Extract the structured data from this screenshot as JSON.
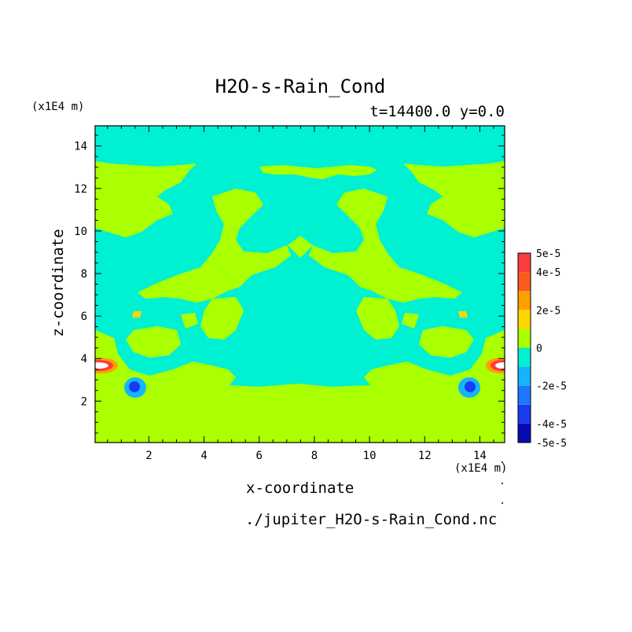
{
  "chart_data": {
    "type": "heatmap",
    "title": "H2O-s-Rain_Cond",
    "subtitle": "t=14400.0 y=0.0",
    "xlabel": "x-coordinate",
    "ylabel": "z-coordinate",
    "x_units": "(x1E4 m)",
    "y_units": "(x1E4 m)",
    "xlim": [
      0.05,
      14.9
    ],
    "ylim": [
      0.05,
      14.95
    ],
    "x_ticks": [
      2,
      4,
      6,
      8,
      10,
      12,
      14
    ],
    "y_ticks": [
      2,
      4,
      6,
      8,
      10,
      12,
      14
    ],
    "source_file": "./jupiter_H2O-s-Rain_Cond.nc",
    "colorbar": {
      "levels": [
        -5e-05,
        -4e-05,
        -3e-05,
        -2e-05,
        -1e-05,
        0,
        1e-05,
        2e-05,
        3e-05,
        4e-05,
        5e-05
      ],
      "colors": [
        "#0a0ab4",
        "#1a3cf0",
        "#1e78ff",
        "#14b4ff",
        "#00f0d2",
        "#aaff00",
        "#ffd700",
        "#ffa000",
        "#ff5a1e",
        "#ff3c3c"
      ],
      "labels": [
        {
          "text": "5e-5",
          "value": 5e-05
        },
        {
          "text": "4e-5",
          "value": 4e-05
        },
        {
          "text": "2e-5",
          "value": 2e-05
        },
        {
          "text": "0",
          "value": 0
        },
        {
          "text": "-2e-5",
          "value": -2e-05
        },
        {
          "text": "-4e-5",
          "value": -4e-05
        },
        {
          "text": "-5e-5",
          "value": -5e-05
        }
      ]
    }
  }
}
